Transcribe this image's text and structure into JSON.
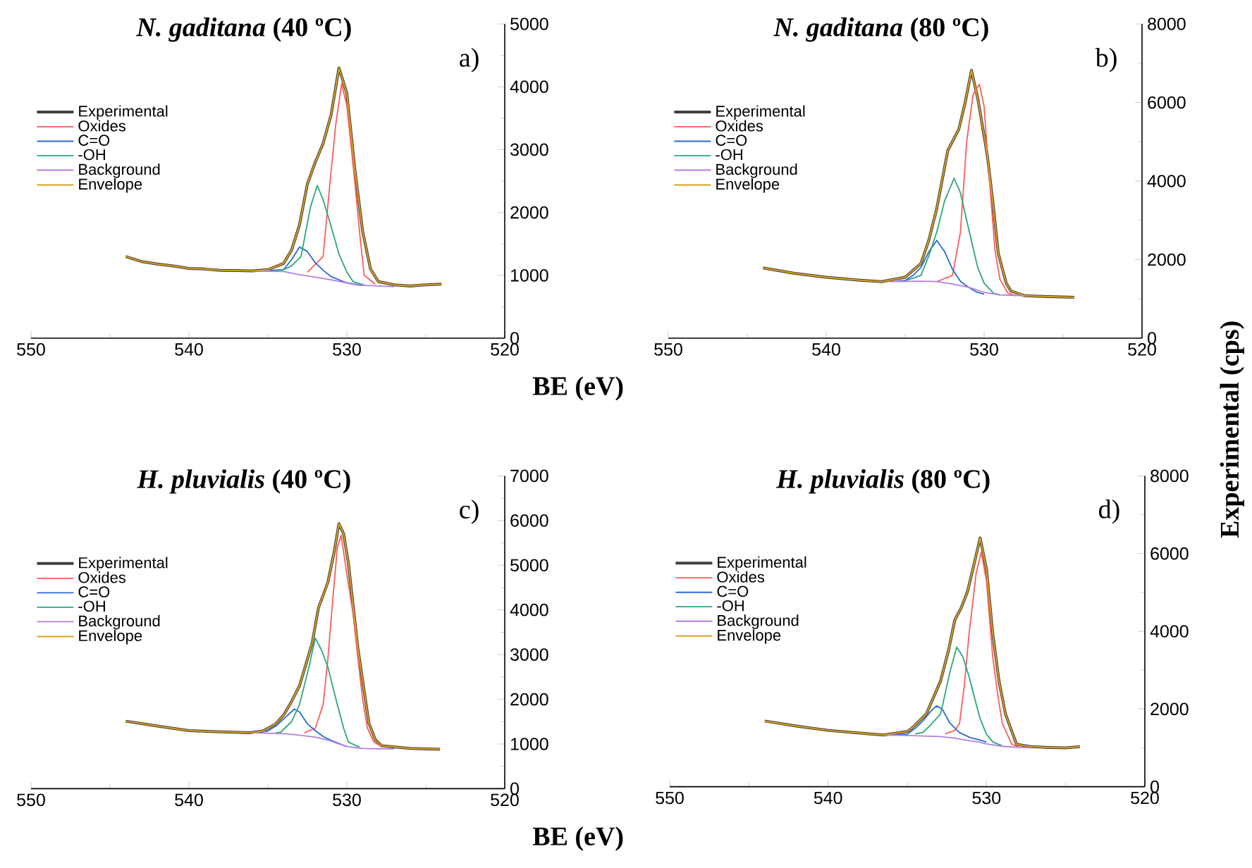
{
  "chart_data": [
    {
      "type": "line",
      "title": "*N. gaditana* (40 ºC)",
      "xlabel": "BE (eV)",
      "annotations": [
        "a)"
      ],
      "legend": "top left",
      "xlim": [
        550,
        520
      ],
      "xticks": [
        550,
        540,
        530,
        520
      ],
      "ylim": [
        0,
        5000
      ],
      "yticks": [
        0,
        1000,
        2000,
        3000,
        4000,
        5000
      ],
      "series": [
        {
          "name": "Experimental",
          "color": "#404040",
          "x": [
            544,
            543,
            542,
            541,
            540,
            539,
            538,
            537,
            536,
            535,
            534,
            533.5,
            533,
            532.5,
            532,
            531.5,
            531,
            530.5,
            530,
            529.5,
            529,
            528.5,
            528,
            527,
            526,
            525,
            524
          ],
          "values": [
            1300,
            1220,
            1180,
            1150,
            1110,
            1100,
            1080,
            1075,
            1070,
            1090,
            1190,
            1400,
            1800,
            2450,
            2800,
            3100,
            3550,
            4300,
            3900,
            2700,
            1700,
            1100,
            900,
            850,
            830,
            850,
            860
          ]
        },
        {
          "name": "Oxides",
          "color": "#ff5b5b",
          "x": [
            532.5,
            531.5,
            531.1,
            530.7,
            530.33,
            530,
            529.5,
            529.2,
            528.9,
            528.2
          ],
          "values": [
            1050,
            1300,
            2390,
            3400,
            4050,
            3700,
            2500,
            1700,
            1000,
            860
          ]
        },
        {
          "name": "C=O",
          "color": "#2a6ad8",
          "x": [
            535,
            534,
            533.5,
            533,
            532.5,
            532,
            531.5,
            531,
            530,
            529
          ],
          "values": [
            1075,
            1090,
            1250,
            1450,
            1380,
            1200,
            1080,
            980,
            880,
            840
          ]
        },
        {
          "name": "-OH",
          "color": "#2aa87a",
          "x": [
            534.5,
            534,
            533.5,
            532.9,
            532.3,
            531.87,
            531.5,
            531.1,
            530.5,
            530,
            529.6,
            528.9
          ],
          "values": [
            1075,
            1090,
            1150,
            1300,
            2090,
            2430,
            2200,
            1870,
            1340,
            1050,
            900,
            844
          ]
        },
        {
          "name": "Background",
          "color": "#b57ee0",
          "x": [
            536,
            534,
            533,
            532,
            531,
            530,
            529.3,
            528,
            527
          ],
          "values": [
            1070,
            1060,
            1010,
            970,
            930,
            880,
            844,
            830,
            820
          ]
        },
        {
          "name": "Envelope",
          "color": "#d9a020",
          "x": [
            544,
            543,
            542,
            541,
            540,
            539,
            538,
            537,
            536,
            535,
            534,
            533.5,
            533,
            532.5,
            532,
            531.5,
            531,
            530.5,
            530,
            529.5,
            529,
            528.5,
            528,
            527,
            526,
            525,
            524
          ],
          "values": [
            1300,
            1220,
            1180,
            1150,
            1110,
            1100,
            1080,
            1075,
            1070,
            1090,
            1190,
            1400,
            1800,
            2450,
            2800,
            3100,
            3550,
            4300,
            3900,
            2700,
            1700,
            1100,
            900,
            850,
            830,
            850,
            860
          ]
        }
      ]
    },
    {
      "type": "line",
      "title": "*N. gaditana* (80 ºC)",
      "ylabel": "Experimental (cps)",
      "annotations": [
        "b)"
      ],
      "legend": "top left",
      "xlim": [
        550,
        520
      ],
      "xticks": [
        550,
        540,
        530,
        520
      ],
      "ylim": [
        0,
        8000
      ],
      "yticks": [
        0,
        2000,
        4000,
        6000,
        8000
      ],
      "series": [
        {
          "name": "Experimental",
          "color": "#404040",
          "x": [
            544,
            542,
            540,
            538,
            536.5,
            535,
            534,
            533.5,
            533,
            532.3,
            531.6,
            531.2,
            530.8,
            530.4,
            529.8,
            529.4,
            529.1,
            528.6,
            528.3,
            527.4,
            526,
            525,
            524.3
          ],
          "values": [
            1790,
            1650,
            1550,
            1480,
            1440,
            1550,
            1900,
            2500,
            3300,
            4780,
            5320,
            6000,
            6820,
            6100,
            4660,
            3300,
            2150,
            1400,
            1200,
            1080,
            1060,
            1050,
            1040
          ]
        },
        {
          "name": "Oxides",
          "color": "#ff5b5b",
          "x": [
            533,
            532,
            531.5,
            531.1,
            530.7,
            530.3,
            530,
            529.7,
            529.3,
            529,
            528.5,
            528
          ],
          "values": [
            1440,
            1600,
            2700,
            5020,
            6200,
            6460,
            5900,
            4200,
            2200,
            1500,
            1150,
            1080
          ]
        },
        {
          "name": "C=O",
          "color": "#2a6ad8",
          "x": [
            535.5,
            535,
            534.5,
            534,
            533.5,
            533,
            532.5,
            532,
            531.5,
            531,
            530.5,
            530
          ],
          "values": [
            1450,
            1470,
            1600,
            1800,
            2200,
            2490,
            2200,
            1750,
            1450,
            1300,
            1180,
            1120
          ]
        },
        {
          "name": "-OH",
          "color": "#2aa87a",
          "x": [
            535,
            534,
            533.5,
            533,
            532.5,
            531.9,
            531.5,
            531.1,
            530.7,
            530.4,
            530,
            529.4,
            529
          ],
          "values": [
            1460,
            1600,
            2100,
            2700,
            3500,
            4070,
            3700,
            2990,
            2300,
            1790,
            1400,
            1140,
            1100
          ]
        },
        {
          "name": "Background",
          "color": "#b57ee0",
          "x": [
            536,
            534,
            533,
            532,
            531,
            530,
            529,
            528,
            527
          ],
          "values": [
            1440,
            1450,
            1440,
            1380,
            1300,
            1170,
            1100,
            1090,
            1080
          ]
        },
        {
          "name": "Envelope",
          "color": "#d9a020",
          "x": [
            544,
            542,
            540,
            538,
            536.5,
            535,
            534,
            533.5,
            533,
            532.3,
            531.6,
            531.2,
            530.8,
            530.4,
            529.8,
            529.4,
            529.1,
            528.6,
            528.3,
            527.4,
            526,
            525,
            524.3
          ],
          "values": [
            1790,
            1650,
            1550,
            1480,
            1440,
            1550,
            1900,
            2500,
            3300,
            4780,
            5320,
            6000,
            6820,
            6100,
            4660,
            3300,
            2150,
            1400,
            1200,
            1080,
            1060,
            1050,
            1040
          ]
        }
      ]
    },
    {
      "type": "line",
      "title": "*H. pluvialis* (40 ºC)",
      "xlabel": "BE (eV)",
      "annotations": [
        "c)"
      ],
      "legend": "top left",
      "xlim": [
        550,
        520
      ],
      "xticks": [
        550,
        540,
        530,
        520
      ],
      "ylim": [
        0,
        7000
      ],
      "yticks": [
        0,
        1000,
        2000,
        3000,
        4000,
        5000,
        6000,
        7000
      ],
      "series": [
        {
          "name": "Experimental",
          "color": "#404040",
          "x": [
            544,
            542,
            540,
            538,
            536.2,
            535.3,
            534.5,
            534,
            533.5,
            533,
            532.2,
            531.8,
            531.2,
            530.8,
            530.5,
            530.2,
            529.9,
            529.3,
            528.6,
            528.2,
            527.8,
            526,
            525,
            524.1
          ],
          "values": [
            1510,
            1400,
            1300,
            1270,
            1250,
            1290,
            1450,
            1650,
            1950,
            2300,
            3250,
            4040,
            4620,
            5300,
            5930,
            5700,
            5040,
            3140,
            1460,
            1100,
            960,
            900,
            890,
            880
          ]
        },
        {
          "name": "Oxides",
          "color": "#ff5b5b",
          "x": [
            532.7,
            532,
            531.5,
            531.2,
            530.9,
            530.6,
            530.36,
            530,
            529.6,
            529.3,
            529,
            528.7,
            528.3,
            527.9
          ],
          "values": [
            1250,
            1350,
            1880,
            2900,
            4190,
            5400,
            5670,
            4800,
            3900,
            2930,
            2000,
            1360,
            1050,
            960
          ]
        },
        {
          "name": "C=O",
          "color": "#2a6ad8",
          "x": [
            536,
            535,
            534.5,
            534,
            533.33,
            533,
            532.5,
            532,
            531.5,
            531,
            530
          ],
          "values": [
            1250,
            1290,
            1400,
            1560,
            1780,
            1720,
            1450,
            1300,
            1170,
            1080,
            940
          ]
        },
        {
          "name": "-OH",
          "color": "#2aa87a",
          "x": [
            534.5,
            534.2,
            533.5,
            533,
            532.4,
            532,
            531.6,
            531.2,
            530.6,
            530.2,
            529.9,
            529.2
          ],
          "values": [
            1250,
            1260,
            1500,
            1880,
            2720,
            3370,
            3100,
            2720,
            1880,
            1350,
            1040,
            930
          ]
        },
        {
          "name": "Background",
          "color": "#b57ee0",
          "x": [
            536,
            534,
            533,
            532,
            531.2,
            530.5,
            529.9,
            529,
            528,
            527
          ],
          "values": [
            1250,
            1230,
            1200,
            1150,
            1090,
            1000,
            940,
            900,
            890,
            890
          ]
        },
        {
          "name": "Envelope",
          "color": "#d9a020",
          "x": [
            544,
            542,
            540,
            538,
            536.2,
            535.3,
            534.5,
            534,
            533.5,
            533,
            532.2,
            531.8,
            531.2,
            530.8,
            530.5,
            530.2,
            529.9,
            529.3,
            528.6,
            528.2,
            527.8,
            526,
            525,
            524.1
          ],
          "values": [
            1510,
            1400,
            1300,
            1270,
            1250,
            1290,
            1450,
            1650,
            1950,
            2300,
            3250,
            4040,
            4620,
            5300,
            5930,
            5700,
            5040,
            3140,
            1460,
            1100,
            960,
            900,
            890,
            880
          ]
        }
      ]
    },
    {
      "type": "line",
      "title": "*H. pluvialis* (80 ºC)",
      "annotations": [
        "d)"
      ],
      "legend": "top left",
      "xlim": [
        550,
        520
      ],
      "xticks": [
        550,
        540,
        530,
        520
      ],
      "ylim": [
        0,
        8000
      ],
      "yticks": [
        0,
        2000,
        4000,
        6000,
        8000
      ],
      "series": [
        {
          "name": "Experimental",
          "color": "#404040",
          "x": [
            544,
            542,
            540,
            538,
            536.5,
            535,
            534.7,
            533.8,
            532.9,
            532.4,
            532,
            531.6,
            531.2,
            530.8,
            530.4,
            530,
            529.6,
            529.2,
            528.8,
            528.1,
            527.2,
            526,
            525,
            524.1
          ],
          "values": [
            1690,
            1560,
            1450,
            1380,
            1330,
            1420,
            1510,
            1870,
            2720,
            3500,
            4290,
            4600,
            5020,
            5700,
            6400,
            5600,
            3930,
            2700,
            1870,
            1090,
            1030,
            1010,
            1000,
            1030
          ]
        },
        {
          "name": "Oxides",
          "color": "#ff5b5b",
          "x": [
            532.6,
            532,
            531.7,
            531.4,
            531.1,
            530.65,
            530.33,
            530,
            529.6,
            529.3,
            529,
            528.4,
            528
          ],
          "values": [
            1360,
            1450,
            1630,
            2600,
            3930,
            5500,
            6040,
            5300,
            3320,
            2400,
            1630,
            1090,
            1030
          ]
        },
        {
          "name": "C=O",
          "color": "#2a6ad8",
          "x": [
            536,
            535,
            534.5,
            534,
            533.5,
            533.16,
            532.8,
            532.3,
            531.7,
            531,
            530.5,
            530
          ],
          "values": [
            1330,
            1350,
            1500,
            1700,
            1950,
            2080,
            2000,
            1630,
            1390,
            1260,
            1210,
            1150
          ]
        },
        {
          "name": "-OH",
          "color": "#2aa87a",
          "x": [
            534.5,
            534,
            533.5,
            532.9,
            532.3,
            531.88,
            531.5,
            531.1,
            530.7,
            530.4,
            530,
            529.6,
            529
          ],
          "values": [
            1360,
            1400,
            1600,
            1870,
            2960,
            3590,
            3350,
            2840,
            2200,
            1750,
            1350,
            1150,
            1050
          ]
        },
        {
          "name": "Background",
          "color": "#b57ee0",
          "x": [
            536.5,
            535,
            533,
            532,
            531,
            530.5,
            530,
            529,
            528,
            527.2
          ],
          "values": [
            1330,
            1320,
            1290,
            1250,
            1180,
            1150,
            1100,
            1040,
            1010,
            1000
          ]
        },
        {
          "name": "Envelope",
          "color": "#d9a020",
          "x": [
            544,
            542,
            540,
            538,
            536.5,
            535,
            534.7,
            533.8,
            532.9,
            532.4,
            532,
            531.6,
            531.2,
            530.8,
            530.4,
            530,
            529.6,
            529.2,
            528.8,
            528.1,
            527.2,
            526,
            525,
            524.1
          ],
          "values": [
            1690,
            1560,
            1450,
            1380,
            1330,
            1420,
            1510,
            1870,
            2720,
            3500,
            4290,
            4600,
            5020,
            5700,
            6400,
            5600,
            3930,
            2700,
            1870,
            1090,
            1030,
            1010,
            1000,
            1030
          ]
        }
      ]
    }
  ]
}
